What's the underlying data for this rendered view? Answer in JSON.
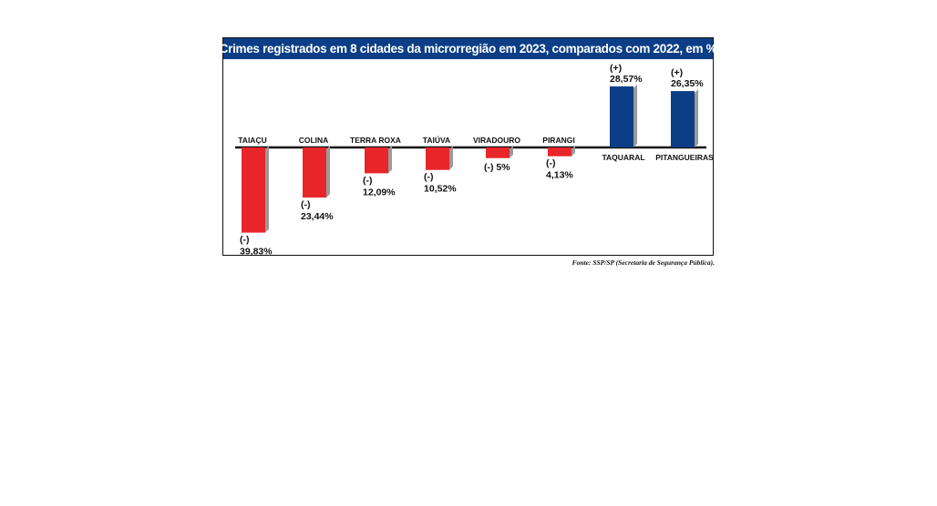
{
  "chart_data": {
    "type": "bar",
    "title": "Crimes registrados em 8 cidades da microrregião em 2023, comparados com 2022, em %",
    "xlabel": "",
    "ylabel": "",
    "ylim": [
      -42,
      31
    ],
    "grid": false,
    "categories": [
      "TAIAÇU",
      "COLINA",
      "TERRA ROXA",
      "TAIÚVA",
      "VIRADOURO",
      "PIRANGI",
      "TAQUARAL",
      "PITANGUEIRAS"
    ],
    "values": [
      -39.83,
      -23.44,
      -12.09,
      -10.52,
      -5,
      -4.13,
      28.57,
      26.35
    ],
    "data_labels": [
      {
        "sign": "(-)",
        "value": "39,83%"
      },
      {
        "sign": "(-)",
        "value": "23,44%"
      },
      {
        "sign": "(-)",
        "value": "12,09%"
      },
      {
        "sign": "(-)",
        "value": "10,52%"
      },
      {
        "sign": "(-)",
        "value": "5%"
      },
      {
        "sign": "(-)",
        "value": "4,13%"
      },
      {
        "sign": "(+)",
        "value": "28,57%"
      },
      {
        "sign": "(+)",
        "value": "26,35%"
      }
    ],
    "colors": {
      "negative": "#e8262a",
      "positive": "#0b3e86",
      "shadow": "#9a9a9a",
      "title_bg": "#0b3e86"
    }
  },
  "source": "Fonte: SSP/SP (Secretaria de Segurança Pública)."
}
